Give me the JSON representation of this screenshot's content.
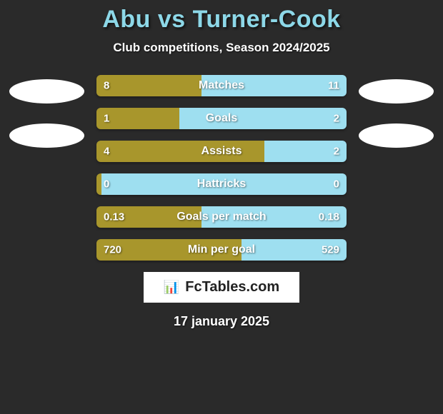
{
  "header": {
    "title": "Abu vs Turner-Cook",
    "subtitle": "Club competitions, Season 2024/2025"
  },
  "colors": {
    "left": "#a8962c",
    "right": "#9edff0",
    "bg": "#2a2a2a",
    "title": "#8dd8e8",
    "oval": "#ffffff"
  },
  "bars": [
    {
      "label": "Matches",
      "left_val": "8",
      "right_val": "11",
      "left_pct": 42,
      "right_pct": 58
    },
    {
      "label": "Goals",
      "left_val": "1",
      "right_val": "2",
      "left_pct": 33,
      "right_pct": 67
    },
    {
      "label": "Assists",
      "left_val": "4",
      "right_val": "2",
      "left_pct": 67,
      "right_pct": 33
    },
    {
      "label": "Hattricks",
      "left_val": "0",
      "right_val": "0",
      "left_pct": 2,
      "right_pct": 98
    },
    {
      "label": "Goals per match",
      "left_val": "0.13",
      "right_val": "0.18",
      "left_pct": 42,
      "right_pct": 58
    },
    {
      "label": "Min per goal",
      "left_val": "720",
      "right_val": "529",
      "left_pct": 58,
      "right_pct": 42
    }
  ],
  "brand": {
    "icon": "📊",
    "text": "FcTables.com"
  },
  "date": "17 january 2025",
  "bar_style": {
    "height": 30,
    "radius": 6,
    "label_fontsize": 16,
    "val_fontsize": 15
  }
}
